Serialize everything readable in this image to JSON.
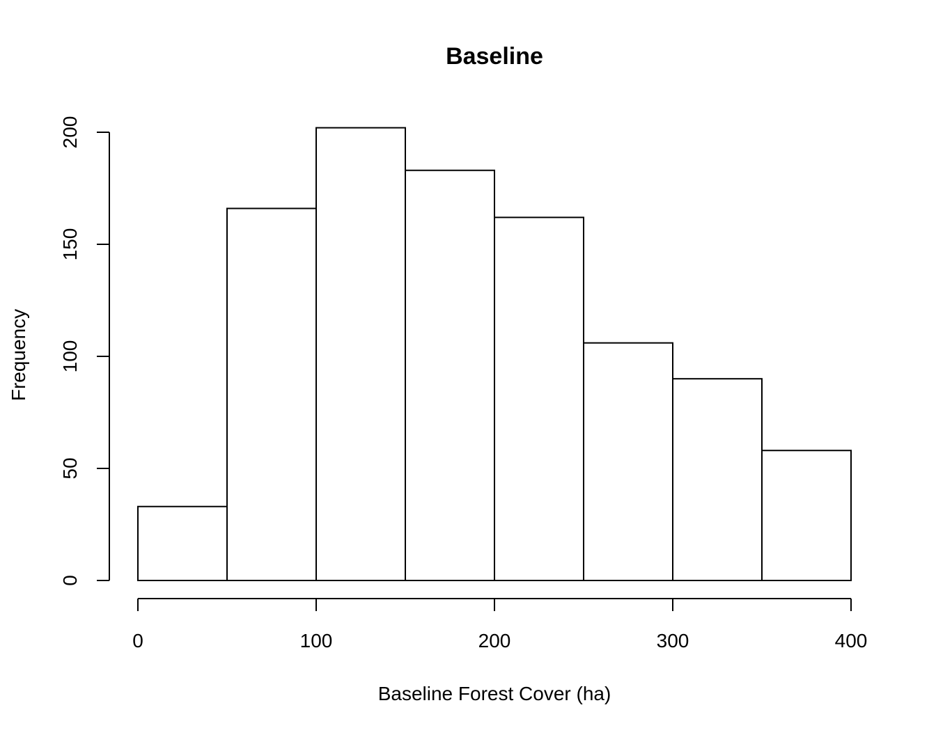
{
  "chart_data": {
    "type": "bar",
    "subtype": "histogram",
    "title": "Baseline",
    "xlabel": "Baseline Forest Cover (ha)",
    "ylabel": "Frequency",
    "bins": [
      {
        "start": 0,
        "end": 50,
        "count": 33
      },
      {
        "start": 50,
        "end": 100,
        "count": 166
      },
      {
        "start": 100,
        "end": 150,
        "count": 202
      },
      {
        "start": 150,
        "end": 200,
        "count": 183
      },
      {
        "start": 200,
        "end": 250,
        "count": 162
      },
      {
        "start": 250,
        "end": 300,
        "count": 106
      },
      {
        "start": 300,
        "end": 350,
        "count": 90
      },
      {
        "start": 350,
        "end": 400,
        "count": 58
      }
    ],
    "xlim": [
      0,
      400
    ],
    "ylim": [
      0,
      200
    ],
    "xticks": [
      0,
      100,
      200,
      300,
      400
    ],
    "yticks": [
      0,
      50,
      100,
      150,
      200
    ],
    "grid": false,
    "bar_fill": "#ffffff",
    "bar_stroke": "#000000"
  }
}
